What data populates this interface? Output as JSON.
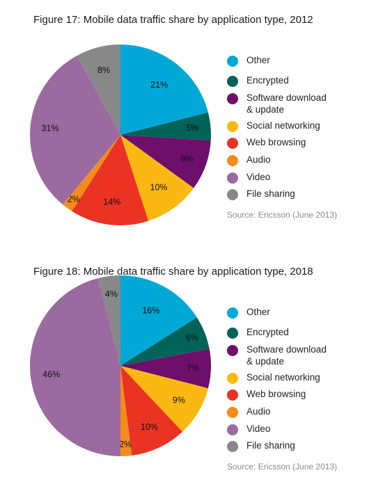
{
  "legend": {
    "items": [
      {
        "label": "Other",
        "color": "#00a8d6"
      },
      {
        "label": "Encrypted",
        "color": "#00635a"
      },
      {
        "label": "Software download\n& update",
        "color": "#6d0f6b"
      },
      {
        "label": "Social networking",
        "color": "#fbb812"
      },
      {
        "label": "Web browsing",
        "color": "#ea3323"
      },
      {
        "label": "Audio",
        "color": "#f28c1c"
      },
      {
        "label": "Video",
        "color": "#9a6aa0"
      },
      {
        "label": "File sharing",
        "color": "#888888"
      }
    ]
  },
  "source": "Source: Ericsson (June 2013)",
  "chart_data": [
    {
      "type": "pie",
      "title": "Figure 17: Mobile data traffic share by application type, 2012",
      "categories": [
        "Other",
        "Encrypted",
        "Software download & update",
        "Social networking",
        "Web browsing",
        "Audio",
        "Video",
        "File sharing"
      ],
      "values": [
        21,
        5,
        9,
        10,
        14,
        2,
        31,
        8
      ],
      "labels": [
        "21%",
        "5%",
        "9%",
        "10%",
        "14%",
        "2%",
        "31%",
        "8%"
      ],
      "legend_position": "right"
    },
    {
      "type": "pie",
      "title": "Figure 18: Mobile data traffic share by application type, 2018",
      "categories": [
        "Other",
        "Encrypted",
        "Software download & update",
        "Social networking",
        "Web browsing",
        "Audio",
        "Video",
        "File sharing"
      ],
      "values": [
        16,
        6,
        7,
        9,
        10,
        2,
        46,
        4
      ],
      "labels": [
        "16%",
        "6%",
        "7%",
        "9%",
        "10%",
        "2%",
        "46%",
        "4%"
      ],
      "legend_position": "right"
    }
  ]
}
